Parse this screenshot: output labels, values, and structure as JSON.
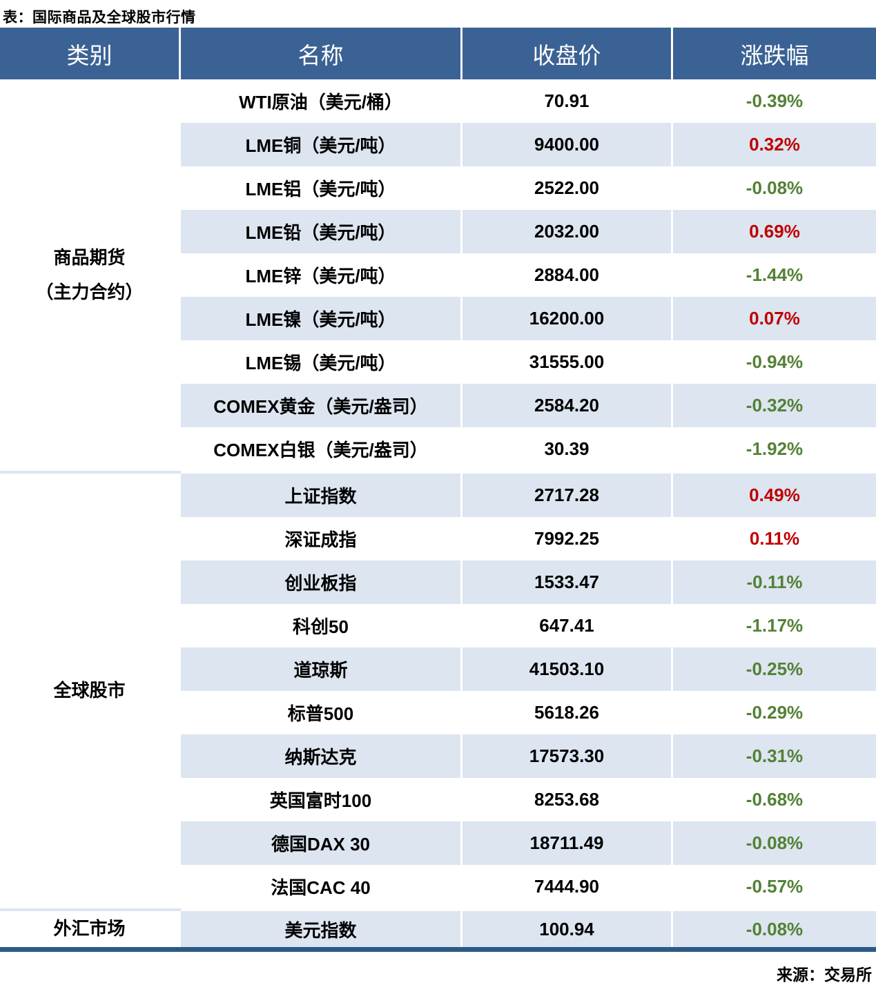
{
  "title": "表：国际商品及全球股市行情",
  "source": "来源：交易所",
  "colors": {
    "header_bg": "#3B6294",
    "row_alt_bg": "#DCE5F0",
    "up": "#C00000",
    "down": "#538135",
    "bottom_rule": "#2D5A86"
  },
  "table": {
    "headers": [
      "类别",
      "名称",
      "收盘价",
      "涨跌幅"
    ],
    "sections": [
      {
        "category_lines": [
          "商品期货",
          "（主力合约）"
        ],
        "rows": [
          {
            "name": "WTI原油（美元/桶）",
            "close": "70.91",
            "change": "-0.39%",
            "direction": "down"
          },
          {
            "name": "LME铜（美元/吨）",
            "close": "9400.00",
            "change": "0.32%",
            "direction": "up"
          },
          {
            "name": "LME铝（美元/吨）",
            "close": "2522.00",
            "change": "-0.08%",
            "direction": "down"
          },
          {
            "name": "LME铅（美元/吨）",
            "close": "2032.00",
            "change": "0.69%",
            "direction": "up"
          },
          {
            "name": "LME锌（美元/吨）",
            "close": "2884.00",
            "change": "-1.44%",
            "direction": "down"
          },
          {
            "name": "LME镍（美元/吨）",
            "close": "16200.00",
            "change": "0.07%",
            "direction": "up"
          },
          {
            "name": "LME锡（美元/吨）",
            "close": "31555.00",
            "change": "-0.94%",
            "direction": "down"
          },
          {
            "name": "COMEX黄金（美元/盎司）",
            "close": "2584.20",
            "change": "-0.32%",
            "direction": "down"
          },
          {
            "name": "COMEX白银（美元/盎司）",
            "close": "30.39",
            "change": "-1.92%",
            "direction": "down"
          }
        ]
      },
      {
        "category_lines": [
          "全球股市"
        ],
        "rows": [
          {
            "name": "上证指数",
            "close": "2717.28",
            "change": "0.49%",
            "direction": "up"
          },
          {
            "name": "深证成指",
            "close": "7992.25",
            "change": "0.11%",
            "direction": "up"
          },
          {
            "name": "创业板指",
            "close": "1533.47",
            "change": "-0.11%",
            "direction": "down"
          },
          {
            "name": "科创50",
            "close": "647.41",
            "change": "-1.17%",
            "direction": "down"
          },
          {
            "name": "道琼斯",
            "close": "41503.10",
            "change": "-0.25%",
            "direction": "down"
          },
          {
            "name": "标普500",
            "close": "5618.26",
            "change": "-0.29%",
            "direction": "down"
          },
          {
            "name": "纳斯达克",
            "close": "17573.30",
            "change": "-0.31%",
            "direction": "down"
          },
          {
            "name": "英国富时100",
            "close": "8253.68",
            "change": "-0.68%",
            "direction": "down"
          },
          {
            "name": "德国DAX 30",
            "close": "18711.49",
            "change": "-0.08%",
            "direction": "down"
          },
          {
            "name": "法国CAC 40",
            "close": "7444.90",
            "change": "-0.57%",
            "direction": "down"
          }
        ]
      },
      {
        "category_lines": [
          "外汇市场"
        ],
        "rows": [
          {
            "name": "美元指数",
            "close": "100.94",
            "change": "-0.08%",
            "direction": "down"
          }
        ]
      }
    ]
  }
}
